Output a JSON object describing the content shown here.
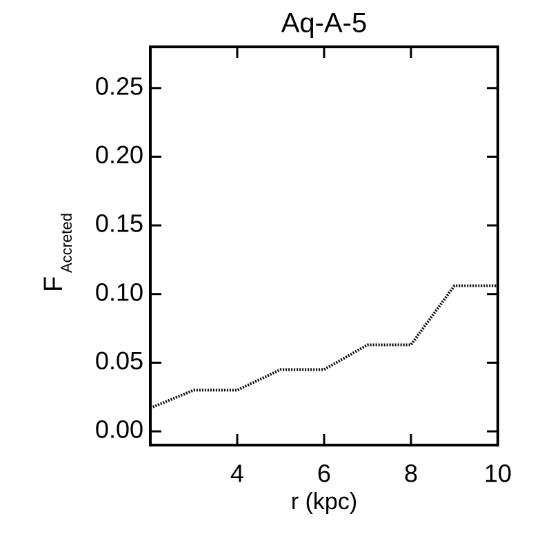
{
  "chart_data": {
    "type": "line",
    "title": "Aq-A-5",
    "xlabel": "r (kpc)",
    "ylabel": "F",
    "ylabel_subscript": "Accreted",
    "x": [
      2,
      3,
      4,
      5,
      6,
      7,
      8,
      9,
      10
    ],
    "series": [
      {
        "color": "#000000",
        "values": [
          0.017,
          0.03,
          0.03,
          0.045,
          0.045,
          0.063,
          0.063,
          0.106,
          0.106
        ]
      }
    ],
    "xlim": [
      2,
      10
    ],
    "xticks": [
      4,
      6,
      8,
      10
    ],
    "ylim": [
      -0.01,
      0.28
    ],
    "yticks": [
      {
        "value": 0,
        "label": "0.00"
      },
      {
        "value": 0.05,
        "label": "0.05"
      },
      {
        "value": 0.1,
        "label": "0.10"
      },
      {
        "value": 0.15,
        "label": "0.15"
      },
      {
        "value": 0.2,
        "label": "0.20"
      },
      {
        "value": 0.25,
        "label": "0.25"
      }
    ],
    "line_style": "dotted"
  }
}
